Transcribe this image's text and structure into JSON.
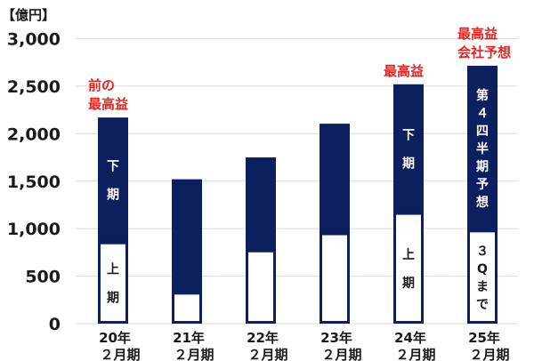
{
  "chart_data": {
    "type": "bar",
    "stacked": true,
    "unit_label": "【億円】",
    "categories": [
      [
        "20年",
        "２月期"
      ],
      [
        "21年",
        "２月期"
      ],
      [
        "22年",
        "２月期"
      ],
      [
        "23年",
        "２月期"
      ],
      [
        "24年",
        "２月期"
      ],
      [
        "25年",
        "２月期"
      ]
    ],
    "series": [
      {
        "name": "上期",
        "values": [
          850,
          320,
          765,
          945,
          1160,
          975
        ]
      },
      {
        "name": "下期",
        "values": [
          1320,
          1200,
          985,
          1160,
          1360,
          1740
        ]
      }
    ],
    "ylim": [
      0,
      3000
    ],
    "yticks": [
      0,
      500,
      1000,
      1500,
      2000,
      2500,
      3000
    ],
    "ytick_labels": [
      "0",
      "500",
      "1,000",
      "1,500",
      "2,000",
      "2,500",
      "3,000"
    ],
    "grid": true,
    "in_bar_labels": [
      {
        "bar": 0,
        "segment": "upper",
        "text": [
          "下",
          "期"
        ]
      },
      {
        "bar": 0,
        "segment": "lower",
        "text": [
          "上",
          "期"
        ]
      },
      {
        "bar": 4,
        "segment": "upper",
        "text": [
          "下",
          "期"
        ]
      },
      {
        "bar": 4,
        "segment": "lower",
        "text": [
          "上",
          "期"
        ]
      },
      {
        "bar": 5,
        "segment": "upper",
        "text": [
          "第",
          "４",
          "四",
          "半",
          "期",
          "予",
          "想"
        ]
      },
      {
        "bar": 5,
        "segment": "lower",
        "text": [
          "３",
          "Q",
          "ま",
          "で"
        ]
      }
    ],
    "annotations": [
      {
        "bar": 0,
        "text": [
          "前の",
          "最高益"
        ]
      },
      {
        "bar": 4,
        "text": [
          "最高益"
        ]
      },
      {
        "bar": 5,
        "text": [
          "最高益",
          "会社予想"
        ]
      }
    ],
    "colors": {
      "upper": "#0c1f5e",
      "lower_fill": "#ffffff",
      "lower_border": "#0c1f5e",
      "annotation": "#e8231f",
      "grid": "#d9d9d9"
    }
  }
}
